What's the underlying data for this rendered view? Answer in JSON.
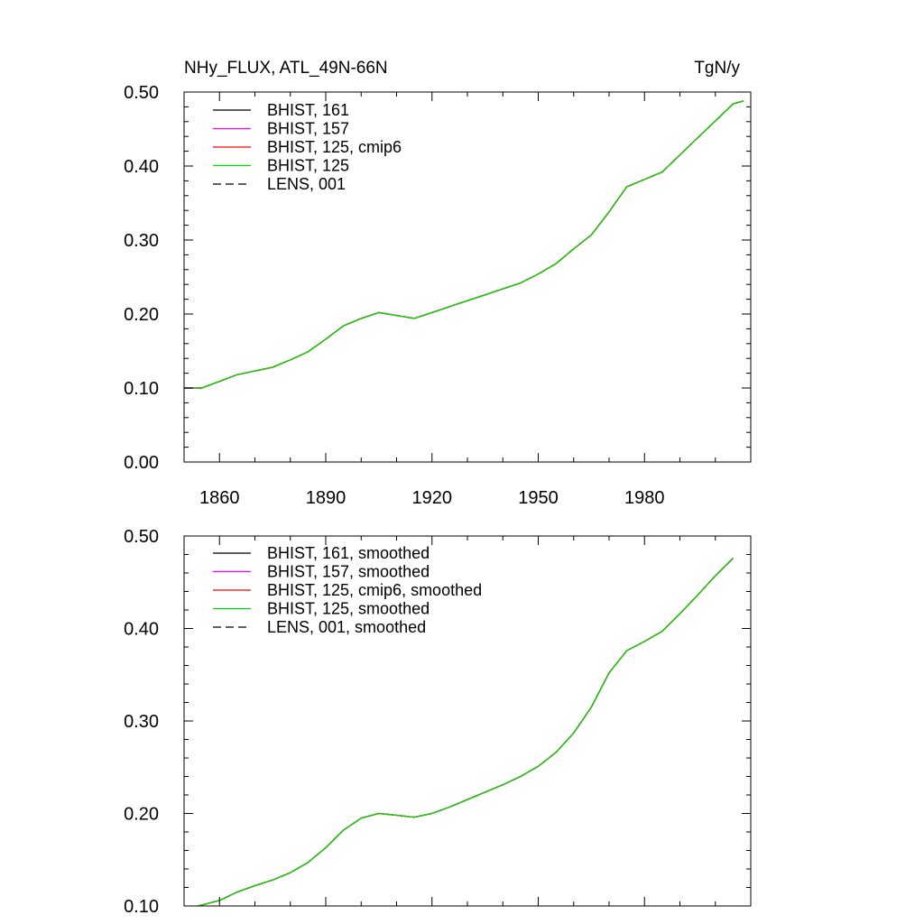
{
  "chart_data": [
    {
      "type": "line",
      "title": "NHy_FLUX, ATL_49N-66N",
      "units": "TgN/y",
      "xlim": [
        1850,
        2010
      ],
      "ylim": [
        0,
        0.5
      ],
      "x_ticks": [
        "1860",
        "1890",
        "1920",
        "1950",
        "1980"
      ],
      "y_ticks": [
        "0.00",
        "0.10",
        "0.20",
        "0.30",
        "0.40",
        "0.50"
      ],
      "series": [
        {
          "name": "BHIST, 161",
          "color": "#000000",
          "dash": "solid"
        },
        {
          "name": "BHIST, 157",
          "color": "#ff00ff",
          "dash": "solid"
        },
        {
          "name": "BHIST, 125, cmip6",
          "color": "#ff0000",
          "dash": "solid"
        },
        {
          "name": "BHIST, 125",
          "color": "#00dd00",
          "dash": "solid"
        },
        {
          "name": "LENS, 001",
          "color": "#000000",
          "dash": "dashed"
        }
      ],
      "x": [
        1850,
        1855,
        1860,
        1865,
        1870,
        1875,
        1880,
        1885,
        1890,
        1895,
        1900,
        1905,
        1910,
        1915,
        1920,
        1925,
        1930,
        1935,
        1940,
        1945,
        1950,
        1955,
        1960,
        1965,
        1970,
        1975,
        1980,
        1985,
        1990,
        1995,
        2000,
        2005,
        2008
      ],
      "y": [
        0.1,
        0.1,
        0.109,
        0.118,
        0.123,
        0.128,
        0.138,
        0.149,
        0.166,
        0.184,
        0.194,
        0.202,
        0.198,
        0.194,
        0.202,
        0.21,
        0.218,
        0.226,
        0.234,
        0.242,
        0.254,
        0.268,
        0.288,
        0.307,
        0.338,
        0.372,
        0.382,
        0.392,
        0.415,
        0.438,
        0.461,
        0.484,
        0.488
      ]
    },
    {
      "type": "line",
      "xlim": [
        1850,
        2010
      ],
      "ylim": [
        0.1,
        0.5
      ],
      "y_ticks": [
        "0.10",
        "0.20",
        "0.30",
        "0.40",
        "0.50"
      ],
      "series": [
        {
          "name": "BHIST, 161, smoothed",
          "color": "#000000",
          "dash": "solid"
        },
        {
          "name": "BHIST, 157, smoothed",
          "color": "#ff00ff",
          "dash": "solid"
        },
        {
          "name": "BHIST, 125, cmip6, smoothed",
          "color": "#ff0000",
          "dash": "solid"
        },
        {
          "name": "BHIST, 125, smoothed",
          "color": "#00dd00",
          "dash": "solid"
        },
        {
          "name": "LENS, 001, smoothed",
          "color": "#000000",
          "dash": "dashed"
        }
      ],
      "x": [
        1854,
        1860,
        1865,
        1870,
        1875,
        1880,
        1885,
        1890,
        1895,
        1900,
        1905,
        1910,
        1915,
        1920,
        1925,
        1930,
        1935,
        1940,
        1945,
        1950,
        1955,
        1960,
        1965,
        1970,
        1975,
        1980,
        1985,
        1990,
        1995,
        2000,
        2005
      ],
      "y": [
        0.1,
        0.106,
        0.115,
        0.122,
        0.128,
        0.136,
        0.147,
        0.163,
        0.182,
        0.195,
        0.2,
        0.198,
        0.196,
        0.2,
        0.207,
        0.215,
        0.223,
        0.231,
        0.24,
        0.251,
        0.266,
        0.287,
        0.315,
        0.352,
        0.376,
        0.386,
        0.397,
        0.416,
        0.436,
        0.457,
        0.476
      ]
    }
  ]
}
